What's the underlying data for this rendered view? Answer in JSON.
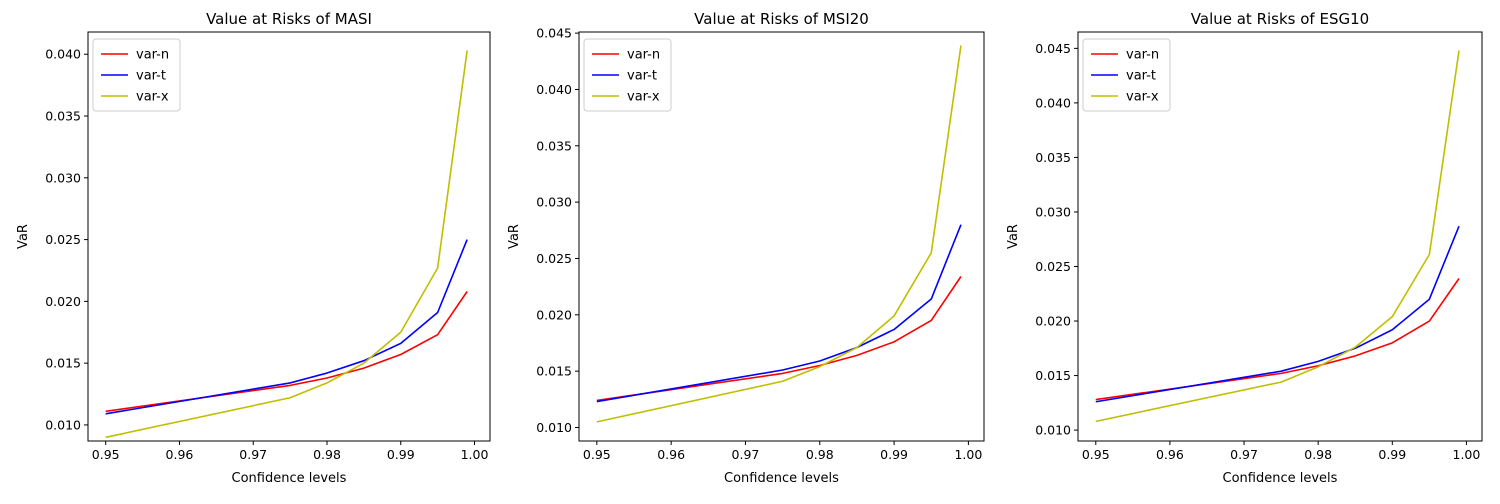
{
  "chart_data": [
    {
      "type": "line",
      "title": "Value at Risks of MASI",
      "xlabel": "Confidence levels",
      "ylabel": "VaR",
      "x": [
        0.95,
        0.975,
        0.98,
        0.985,
        0.99,
        0.995,
        0.999
      ],
      "xlim": [
        0.9476,
        1.0021
      ],
      "ylim": [
        0.0087,
        0.0418
      ],
      "xticks": [
        "0.95",
        "0.96",
        "0.97",
        "0.98",
        "0.99",
        "1.00"
      ],
      "xtick_values": [
        0.95,
        0.96,
        0.97,
        0.98,
        0.99,
        1.0
      ],
      "yticks": [
        "0.010",
        "0.015",
        "0.020",
        "0.025",
        "0.030",
        "0.035",
        "0.040"
      ],
      "ytick_values": [
        0.01,
        0.015,
        0.02,
        0.025,
        0.03,
        0.035,
        0.04
      ],
      "legend": "top-left",
      "grid": false,
      "series": [
        {
          "name": "var-n",
          "color": "#ff0000",
          "values": [
            0.0111,
            0.0132,
            0.0138,
            0.0146,
            0.0157,
            0.0173,
            0.0208
          ]
        },
        {
          "name": "var-t",
          "color": "#0000ff",
          "values": [
            0.0109,
            0.0134,
            0.0142,
            0.0152,
            0.0166,
            0.0191,
            0.025
          ]
        },
        {
          "name": "var-x",
          "color": "#bfbf00",
          "values": [
            0.009,
            0.0122,
            0.0134,
            0.015,
            0.0175,
            0.0227,
            0.0403
          ]
        }
      ]
    },
    {
      "type": "line",
      "title": "Value at Risks of MSI20",
      "xlabel": "Confidence levels",
      "ylabel": "VaR",
      "x": [
        0.95,
        0.975,
        0.98,
        0.985,
        0.99,
        0.995,
        0.999
      ],
      "xlim": [
        0.9476,
        1.0021
      ],
      "ylim": [
        0.0088,
        0.0451
      ],
      "xticks": [
        "0.95",
        "0.96",
        "0.97",
        "0.98",
        "0.99",
        "1.00"
      ],
      "xtick_values": [
        0.95,
        0.96,
        0.97,
        0.98,
        0.99,
        1.0
      ],
      "yticks": [
        "0.010",
        "0.015",
        "0.020",
        "0.025",
        "0.030",
        "0.035",
        "0.040",
        "0.045"
      ],
      "ytick_values": [
        0.01,
        0.015,
        0.02,
        0.025,
        0.03,
        0.035,
        0.04,
        0.045
      ],
      "legend": "top-left",
      "grid": false,
      "series": [
        {
          "name": "var-n",
          "color": "#ff0000",
          "values": [
            0.0124,
            0.0148,
            0.0155,
            0.0164,
            0.0176,
            0.0195,
            0.0234
          ]
        },
        {
          "name": "var-t",
          "color": "#0000ff",
          "values": [
            0.0123,
            0.0151,
            0.0159,
            0.0171,
            0.0187,
            0.0214,
            0.028
          ]
        },
        {
          "name": "var-x",
          "color": "#bfbf00",
          "values": [
            0.0105,
            0.0141,
            0.0154,
            0.0171,
            0.0199,
            0.0255,
            0.0439
          ]
        }
      ]
    },
    {
      "type": "line",
      "title": "Value at Risks of ESG10",
      "xlabel": "Confidence levels",
      "ylabel": "VaR",
      "x": [
        0.95,
        0.975,
        0.98,
        0.985,
        0.99,
        0.995,
        0.999
      ],
      "xlim": [
        0.9476,
        1.0021
      ],
      "ylim": [
        0.009,
        0.0465
      ],
      "xticks": [
        "0.95",
        "0.96",
        "0.97",
        "0.98",
        "0.99",
        "1.00"
      ],
      "xtick_values": [
        0.95,
        0.96,
        0.97,
        0.98,
        0.99,
        1.0
      ],
      "yticks": [
        "0.010",
        "0.015",
        "0.020",
        "0.025",
        "0.030",
        "0.035",
        "0.040",
        "0.045"
      ],
      "ytick_values": [
        0.01,
        0.015,
        0.02,
        0.025,
        0.03,
        0.035,
        0.04,
        0.045
      ],
      "legend": "top-left",
      "grid": false,
      "series": [
        {
          "name": "var-n",
          "color": "#ff0000",
          "values": [
            0.0128,
            0.0152,
            0.0159,
            0.0168,
            0.018,
            0.02,
            0.0239
          ]
        },
        {
          "name": "var-t",
          "color": "#0000ff",
          "values": [
            0.0126,
            0.0154,
            0.0163,
            0.0175,
            0.0192,
            0.022,
            0.0287
          ]
        },
        {
          "name": "var-x",
          "color": "#bfbf00",
          "values": [
            0.0108,
            0.0144,
            0.0158,
            0.0176,
            0.0204,
            0.0261,
            0.0448
          ]
        }
      ]
    }
  ]
}
